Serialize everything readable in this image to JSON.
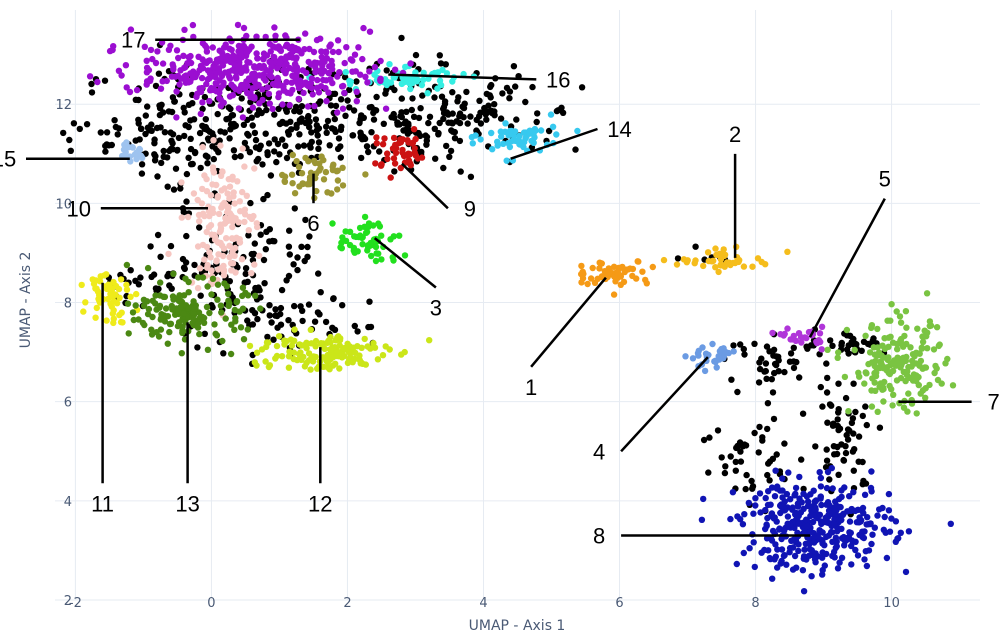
{
  "chart_data": {
    "type": "scatter",
    "title": "",
    "xlabel": "UMAP - Axis 1",
    "ylabel": "UMAP - Axis 2",
    "xlim": [
      -2.3,
      11.3
    ],
    "ylim": [
      2,
      13.9
    ],
    "xticks": [
      -2,
      0,
      2,
      4,
      6,
      8,
      10
    ],
    "yticks": [
      2,
      4,
      6,
      8,
      10,
      12
    ],
    "grid": true,
    "unclustered_color": "#000000",
    "clusters": [
      {
        "label": "1",
        "color": "#f59a16",
        "center": [
          5.9,
          8.6
        ],
        "spread": [
          0.28,
          0.13
        ],
        "n": 55,
        "label_at": [
          4.7,
          6.3
        ],
        "line_to": [
          5.8,
          8.5
        ]
      },
      {
        "label": "2",
        "color": "#f5bd1c",
        "center": [
          7.6,
          8.85
        ],
        "spread": [
          0.35,
          0.1
        ],
        "n": 45,
        "label_at": [
          7.7,
          11.4
        ],
        "line_to": [
          7.7,
          8.9
        ]
      },
      {
        "label": "3",
        "color": "#22e01e",
        "center": [
          2.3,
          9.2
        ],
        "spread": [
          0.25,
          0.25
        ],
        "n": 55,
        "label_at": [
          3.3,
          7.9
        ],
        "line_to": [
          2.4,
          9.3
        ]
      },
      {
        "label": "4",
        "color": "#6b9be3",
        "center": [
          7.4,
          6.9
        ],
        "spread": [
          0.18,
          0.1
        ],
        "n": 30,
        "label_at": [
          5.7,
          5.0
        ],
        "line_to": [
          7.3,
          6.9
        ]
      },
      {
        "label": "5",
        "color": "#b035d9",
        "center": [
          8.7,
          7.3
        ],
        "spread": [
          0.15,
          0.1
        ],
        "n": 25,
        "label_at": [
          9.9,
          10.5
        ],
        "line_to": [
          8.8,
          7.3
        ]
      },
      {
        "label": "6",
        "color": "#9c9634",
        "center": [
          1.5,
          10.6
        ],
        "spread": [
          0.28,
          0.2
        ],
        "n": 50,
        "label_at": [
          1.5,
          9.6
        ],
        "line_to": [
          1.5,
          10.6
        ]
      },
      {
        "label": "7",
        "color": "#7ac442",
        "center": [
          10.1,
          6.7
        ],
        "spread": [
          0.35,
          0.45
        ],
        "n": 180,
        "label_at": [
          11.5,
          6.0
        ],
        "line_to": [
          10.1,
          6.0
        ]
      },
      {
        "label": "8",
        "color": "#1014b4",
        "center": [
          8.9,
          3.5
        ],
        "spread": [
          0.55,
          0.45
        ],
        "n": 350,
        "label_at": [
          5.7,
          3.3
        ],
        "line_to": [
          8.8,
          3.3
        ]
      },
      {
        "label": "9",
        "color": "#cc1313",
        "center": [
          2.8,
          11.0
        ],
        "spread": [
          0.2,
          0.2
        ],
        "n": 45,
        "label_at": [
          3.8,
          9.9
        ],
        "line_to": [
          2.8,
          10.8
        ]
      },
      {
        "label": "10",
        "color": "#f6c6c1",
        "center": [
          0.15,
          9.6
        ],
        "spread": [
          0.25,
          0.65
        ],
        "n": 150,
        "label_at": [
          -1.95,
          9.9
        ],
        "line_to": [
          -0.05,
          9.9
        ]
      },
      {
        "label": "11",
        "color": "#efeb1b",
        "center": [
          -1.5,
          8.2
        ],
        "spread": [
          0.15,
          0.3
        ],
        "n": 55,
        "label_at": [
          -1.6,
          3.95
        ],
        "line_to": [
          -1.6,
          8.4
        ]
      },
      {
        "label": "12",
        "color": "#cbe619",
        "center": [
          1.55,
          7.0
        ],
        "spread": [
          0.5,
          0.2
        ],
        "n": 140,
        "label_at": [
          1.6,
          3.95
        ],
        "line_to": [
          1.6,
          7.1
        ]
      },
      {
        "label": "13",
        "color": "#4b8813",
        "center": [
          -0.3,
          7.8
        ],
        "spread": [
          0.4,
          0.3
        ],
        "n": 160,
        "label_at": [
          -0.35,
          3.95
        ],
        "line_to": [
          -0.35,
          7.6
        ]
      },
      {
        "label": "14",
        "color": "#37c9ef",
        "center": [
          4.55,
          11.3
        ],
        "spread": [
          0.3,
          0.18
        ],
        "n": 55,
        "label_at": [
          6.0,
          11.5
        ],
        "line_to": [
          4.4,
          10.9
        ]
      },
      {
        "label": "15",
        "color": "#9ec3ef",
        "center": [
          -1.2,
          11.05
        ],
        "spread": [
          0.12,
          0.1
        ],
        "n": 20,
        "label_at": [
          -3.05,
          10.9
        ],
        "line_to": [
          -1.2,
          10.9
        ]
      },
      {
        "label": "16",
        "color": "#35eee2",
        "center": [
          2.8,
          12.5
        ],
        "spread": [
          0.45,
          0.12
        ],
        "n": 60,
        "label_at": [
          5.1,
          12.5
        ],
        "line_to": [
          2.6,
          12.6
        ]
      },
      {
        "label": "17",
        "color": "#9b0ed1",
        "center": [
          0.6,
          12.7
        ],
        "spread": [
          0.85,
          0.35
        ],
        "n": 450,
        "label_at": [
          -1.15,
          13.3
        ],
        "line_to": [
          1.3,
          13.3
        ]
      }
    ]
  }
}
